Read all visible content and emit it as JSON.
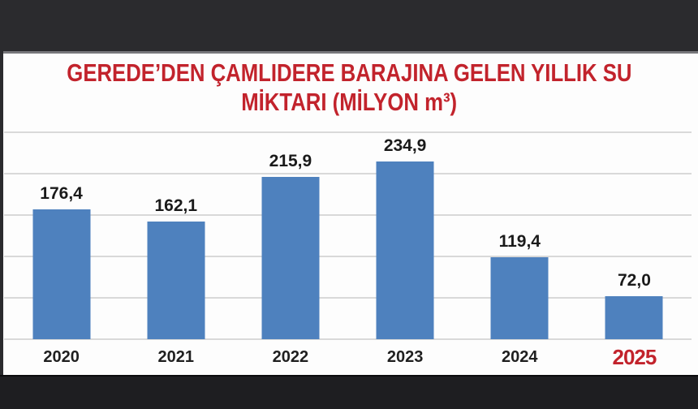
{
  "title": {
    "line1": "GEREDE’DEN ÇAMLIDERE BARAJINA GELEN YILLIK SU",
    "line2": "MİKTARI (MİLYON m³)"
  },
  "colors": {
    "accent_red": "#c2232c",
    "bar_blue": "#4e81be",
    "frame_dark": "#2b2b2e",
    "gridline_gray": "#d9d9d9"
  },
  "chart_data": {
    "type": "bar",
    "title": "GEREDE’DEN ÇAMLIDERE BARAJINA GELEN YILLIK SU MİKTARI (MİLYON m³)",
    "categories": [
      "2020",
      "2021",
      "2022",
      "2023",
      "2024",
      "2025"
    ],
    "values": [
      176.4,
      162.1,
      215.9,
      234.9,
      119.4,
      72.0
    ],
    "value_labels": [
      "176,4",
      "162,1",
      "215,9",
      "234,9",
      "119,4",
      "72,0"
    ],
    "xlabel": "",
    "ylabel": "",
    "ylim": [
      20,
      270
    ],
    "gridline_step": 50,
    "grid": true,
    "legend_position": "none",
    "bar_color": "#4e81be",
    "highlight_category": "2025",
    "highlight_color": "#c2232c",
    "value_label_color": "#1a1a1a",
    "axis_label_color": "#1f1f1f"
  }
}
